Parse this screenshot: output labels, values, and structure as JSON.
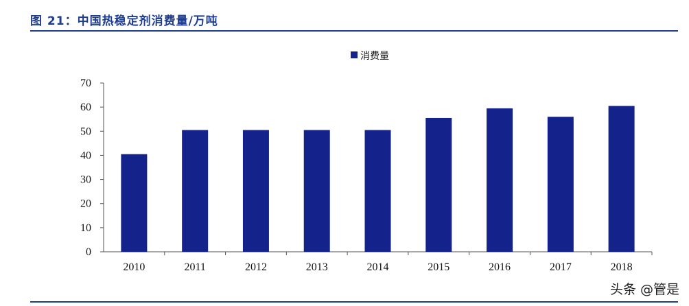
{
  "header": {
    "figure_title": "图 21：中国热稳定剂消费量/万吨"
  },
  "watermark": "头条 @管是",
  "colors": {
    "bar": "#14238c",
    "rule": "#1f3d8f"
  },
  "chart_data": {
    "type": "bar",
    "categories": [
      "2010",
      "2011",
      "2012",
      "2013",
      "2014",
      "2015",
      "2016",
      "2017",
      "2018"
    ],
    "series": [
      {
        "name": "消费量",
        "values": [
          40.5,
          50.5,
          50.5,
          50.5,
          50.5,
          55.5,
          59.5,
          56,
          60.5
        ]
      }
    ],
    "ylim": [
      0,
      70
    ],
    "yticks": [
      0,
      10,
      20,
      30,
      40,
      50,
      60,
      70
    ],
    "legend_position": "top-center",
    "grid": false
  }
}
